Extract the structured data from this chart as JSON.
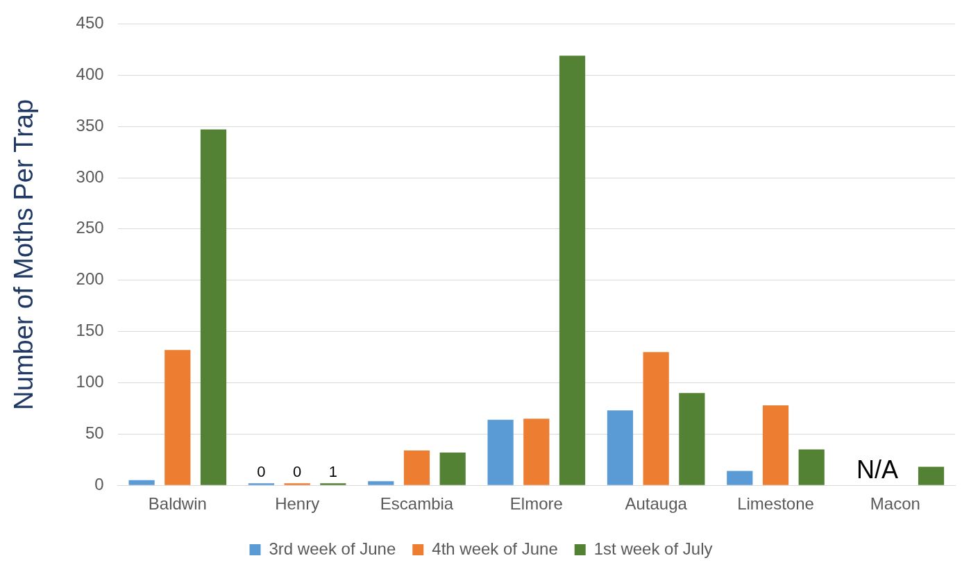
{
  "chart_data": {
    "type": "bar",
    "ylabel": "Number of Moths Per Trap",
    "categories": [
      "Baldwin",
      "Henry",
      "Escambia",
      "Elmore",
      "Autauga",
      "Limestone",
      "Macon"
    ],
    "series": [
      {
        "name": "3rd week of June",
        "color": "#5b9bd5",
        "values": [
          5,
          0,
          4,
          64,
          73,
          14,
          null
        ],
        "value_labels": [
          null,
          "0",
          null,
          null,
          null,
          null,
          null
        ]
      },
      {
        "name": "4th week of June",
        "color": "#ed7d31",
        "values": [
          132,
          0,
          34,
          65,
          130,
          78,
          null
        ],
        "value_labels": [
          null,
          "0",
          null,
          null,
          null,
          null,
          null
        ]
      },
      {
        "name": "1st week of July",
        "color": "#548235",
        "values": [
          347,
          1,
          32,
          419,
          90,
          35,
          18
        ],
        "value_labels": [
          null,
          "1",
          null,
          null,
          null,
          null,
          null
        ]
      }
    ],
    "annotations": [
      "N/A"
    ],
    "ylim": [
      0,
      450
    ],
    "yticks": [
      0,
      50,
      100,
      150,
      200,
      250,
      300,
      350,
      400,
      450
    ],
    "grid": "y",
    "legend": "bottom"
  }
}
